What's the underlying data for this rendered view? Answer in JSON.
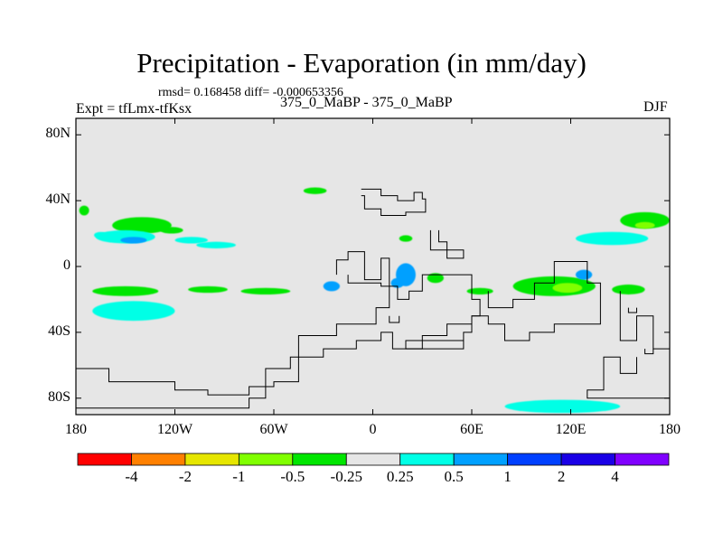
{
  "title": "Precipitation - Evaporation (in mm/day)",
  "stats_line": "rmsd= 0.168458 diff= -0.000653356",
  "experiment": "Expt = tfLmx-tfKsx",
  "comparison": "375_0_MaBP - 375_0_MaBP",
  "season": "DJF",
  "chart_data": {
    "type": "heatmap",
    "title": "Precipitation - Evaporation (in mm/day)",
    "projection": "cylindrical equidistant",
    "xlim": [
      -180,
      180
    ],
    "ylim": [
      -90,
      90
    ],
    "x_ticks": [
      {
        "value": -180,
        "label": "180"
      },
      {
        "value": -120,
        "label": "120W"
      },
      {
        "value": -60,
        "label": "60W"
      },
      {
        "value": 0,
        "label": "0"
      },
      {
        "value": 60,
        "label": "60E"
      },
      {
        "value": 120,
        "label": "120E"
      },
      {
        "value": 180,
        "label": "180"
      }
    ],
    "y_ticks": [
      {
        "value": 80,
        "label": "80N"
      },
      {
        "value": 40,
        "label": "40N"
      },
      {
        "value": 0,
        "label": "0"
      },
      {
        "value": -40,
        "label": "40S"
      },
      {
        "value": -80,
        "label": "80S"
      }
    ],
    "colorbar": {
      "colors": [
        "#ff0000",
        "#ff8000",
        "#e6e600",
        "#80ff00",
        "#00e600",
        "#e6e6e6",
        "#00ffe6",
        "#00a0ff",
        "#0040ff",
        "#1a00e6",
        "#8000ff"
      ],
      "labels": [
        "-4",
        "-2",
        "-1",
        "-0.5",
        "-0.25",
        "0.25",
        "0.5",
        "1",
        "2",
        "4"
      ],
      "levels": [
        -4,
        -2,
        -1,
        -0.5,
        -0.25,
        0.25,
        0.5,
        1,
        2,
        4
      ]
    },
    "background_value_range": [
      -0.25,
      0.25
    ],
    "anomaly_regions": [
      {
        "lon": -175,
        "lat": 34,
        "rlon": 3,
        "rlat": 3,
        "value": -0.3
      },
      {
        "lon": -140,
        "lat": 25,
        "rlon": 18,
        "rlat": 5,
        "value": -0.4
      },
      {
        "lon": -150,
        "lat": 18,
        "rlon": 18,
        "rlat": 4,
        "value": 0.4
      },
      {
        "lon": -145,
        "lat": 16,
        "rlon": 8,
        "rlat": 2,
        "value": 0.7
      },
      {
        "lon": -165,
        "lat": 19,
        "rlon": 4,
        "rlat": 2,
        "value": 0.3
      },
      {
        "lon": -110,
        "lat": 16,
        "rlon": 10,
        "rlat": 2,
        "value": 0.3
      },
      {
        "lon": -95,
        "lat": 13,
        "rlon": 12,
        "rlat": 2,
        "value": 0.3
      },
      {
        "lon": -122,
        "lat": 22,
        "rlon": 7,
        "rlat": 2,
        "value": -0.3
      },
      {
        "lon": -35,
        "lat": 46,
        "rlon": 7,
        "rlat": 2,
        "value": -0.3
      },
      {
        "lon": -150,
        "lat": -15,
        "rlon": 20,
        "rlat": 3,
        "value": -0.3
      },
      {
        "lon": -100,
        "lat": -14,
        "rlon": 12,
        "rlat": 2,
        "value": -0.3
      },
      {
        "lon": -65,
        "lat": -15,
        "rlon": 15,
        "rlat": 2,
        "value": -0.3
      },
      {
        "lon": -145,
        "lat": -27,
        "rlon": 25,
        "rlat": 6,
        "value": 0.4
      },
      {
        "lon": -25,
        "lat": -12,
        "rlon": 5,
        "rlat": 3,
        "value": 0.7
      },
      {
        "lon": 20,
        "lat": -5,
        "rlon": 6,
        "rlat": 7,
        "value": 0.5
      },
      {
        "lon": 15,
        "lat": -10,
        "rlon": 4,
        "rlat": 3,
        "value": 0.8
      },
      {
        "lon": 38,
        "lat": -7,
        "rlon": 5,
        "rlat": 3,
        "value": -0.3
      },
      {
        "lon": 20,
        "lat": 17,
        "rlon": 4,
        "rlat": 2,
        "value": -0.3
      },
      {
        "lon": 65,
        "lat": -15,
        "rlon": 8,
        "rlat": 2,
        "value": -0.3
      },
      {
        "lon": 110,
        "lat": -12,
        "rlon": 25,
        "rlat": 6,
        "value": -0.4
      },
      {
        "lon": 118,
        "lat": -13,
        "rlon": 9,
        "rlat": 3,
        "value": -0.9
      },
      {
        "lon": 128,
        "lat": -5,
        "rlon": 5,
        "rlat": 3,
        "value": 0.9
      },
      {
        "lon": 155,
        "lat": -14,
        "rlon": 10,
        "rlat": 3,
        "value": -0.3
      },
      {
        "lon": 145,
        "lat": 17,
        "rlon": 22,
        "rlat": 4,
        "value": 0.4
      },
      {
        "lon": 165,
        "lat": 28,
        "rlon": 15,
        "rlat": 5,
        "value": -0.4
      },
      {
        "lon": 165,
        "lat": 25,
        "rlon": 6,
        "rlat": 2,
        "value": -0.7
      },
      {
        "lon": 115,
        "lat": -85,
        "rlon": 35,
        "rlat": 4,
        "value": 0.4
      }
    ],
    "coastline_outlines": [
      {
        "name": "northern-landmass",
        "points": [
          [
            -7,
            47
          ],
          [
            5,
            47
          ],
          [
            5,
            43
          ],
          [
            15,
            43
          ],
          [
            15,
            40
          ],
          [
            20,
            40
          ],
          [
            25,
            40
          ],
          [
            25,
            45
          ],
          [
            30,
            45
          ],
          [
            30,
            41
          ],
          [
            32,
            41
          ],
          [
            32,
            33
          ],
          [
            20,
            33
          ],
          [
            20,
            31
          ],
          [
            5,
            31
          ],
          [
            5,
            35
          ],
          [
            -5,
            35
          ],
          [
            -5,
            43
          ],
          [
            -7,
            43
          ]
        ]
      },
      {
        "name": "central-landmass",
        "points": [
          [
            -22,
            -5
          ],
          [
            -22,
            4
          ],
          [
            -15,
            4
          ],
          [
            -15,
            9
          ],
          [
            -5,
            9
          ],
          [
            -5,
            -8
          ],
          [
            5,
            -8
          ],
          [
            5,
            5
          ],
          [
            10,
            5
          ],
          [
            10,
            -25
          ],
          [
            2,
            -25
          ],
          [
            2,
            -35
          ],
          [
            -22,
            -35
          ],
          [
            -22,
            -42
          ],
          [
            -45,
            -42
          ],
          [
            -45,
            -70
          ],
          [
            -60,
            -70
          ],
          [
            -60,
            -73
          ],
          [
            -75,
            -73
          ],
          [
            -75,
            -78
          ],
          [
            -100,
            -78
          ],
          [
            -100,
            -75
          ],
          [
            -120,
            -75
          ],
          [
            -120,
            -70
          ],
          [
            -160,
            -70
          ],
          [
            -160,
            -62
          ],
          [
            -180,
            -62
          ],
          [
            -180,
            -86
          ],
          [
            -75,
            -86
          ],
          [
            -75,
            -80
          ],
          [
            -65,
            -80
          ],
          [
            -65,
            -62
          ],
          [
            -50,
            -62
          ],
          [
            -50,
            -55
          ],
          [
            -30,
            -55
          ],
          [
            -30,
            -50
          ],
          [
            -10,
            -50
          ],
          [
            -10,
            -45
          ],
          [
            5,
            -45
          ],
          [
            5,
            -40
          ],
          [
            12,
            -40
          ],
          [
            12,
            -50
          ],
          [
            30,
            -50
          ],
          [
            30,
            -42
          ],
          [
            45,
            -42
          ],
          [
            45,
            -35
          ],
          [
            60,
            -35
          ],
          [
            60,
            -30
          ],
          [
            65,
            -30
          ],
          [
            65,
            -20
          ],
          [
            60,
            -20
          ],
          [
            60,
            -5
          ],
          [
            30,
            -5
          ],
          [
            30,
            -15
          ],
          [
            22,
            -15
          ],
          [
            22,
            -20
          ],
          [
            15,
            -20
          ],
          [
            15,
            -12
          ],
          [
            5,
            -12
          ],
          [
            5,
            -10
          ],
          [
            -15,
            -10
          ],
          [
            -15,
            -5
          ]
        ]
      },
      {
        "name": "eastern-landmass",
        "points": [
          [
            70,
            -15
          ],
          [
            70,
            -25
          ],
          [
            85,
            -25
          ],
          [
            85,
            -20
          ],
          [
            98,
            -20
          ],
          [
            98,
            -10
          ],
          [
            110,
            -10
          ],
          [
            110,
            3
          ],
          [
            130,
            3
          ],
          [
            130,
            -10
          ],
          [
            138,
            -10
          ],
          [
            138,
            -35
          ],
          [
            110,
            -35
          ],
          [
            110,
            -40
          ],
          [
            95,
            -40
          ],
          [
            95,
            -45
          ],
          [
            80,
            -45
          ],
          [
            80,
            -35
          ],
          [
            70,
            -35
          ],
          [
            70,
            -30
          ],
          [
            60,
            -30
          ],
          [
            60,
            -40
          ],
          [
            55,
            -40
          ],
          [
            55,
            -50
          ],
          [
            20,
            -50
          ],
          [
            20,
            -45
          ],
          [
            55,
            -45
          ]
        ]
      },
      {
        "name": "southeast-landmass",
        "points": [
          [
            150,
            -15
          ],
          [
            150,
            -45
          ],
          [
            160,
            -45
          ],
          [
            160,
            -30
          ],
          [
            170,
            -30
          ],
          [
            170,
            -50
          ],
          [
            180,
            -50
          ],
          [
            180,
            -80
          ],
          [
            130,
            -80
          ],
          [
            130,
            -75
          ],
          [
            140,
            -75
          ],
          [
            140,
            -55
          ],
          [
            150,
            -55
          ],
          [
            150,
            -65
          ],
          [
            160,
            -65
          ],
          [
            160,
            -55
          ]
        ]
      },
      {
        "name": "small-islands-nw",
        "points": [
          [
            35,
            22
          ],
          [
            35,
            10
          ],
          [
            45,
            10
          ],
          [
            45,
            5
          ],
          [
            55,
            5
          ],
          [
            55,
            10
          ],
          [
            45,
            10
          ],
          [
            45,
            15
          ],
          [
            40,
            15
          ],
          [
            40,
            22
          ]
        ]
      },
      {
        "name": "small-island-a",
        "points": [
          [
            155,
            -25
          ],
          [
            155,
            -28
          ],
          [
            160,
            -28
          ],
          [
            160,
            -25
          ]
        ]
      },
      {
        "name": "small-island-b",
        "points": [
          [
            165,
            -50
          ],
          [
            165,
            -53
          ],
          [
            170,
            -53
          ],
          [
            170,
            -50
          ]
        ]
      },
      {
        "name": "small-island-c",
        "points": [
          [
            10,
            -30
          ],
          [
            10,
            -34
          ],
          [
            16,
            -34
          ],
          [
            16,
            -30
          ]
        ]
      }
    ]
  }
}
